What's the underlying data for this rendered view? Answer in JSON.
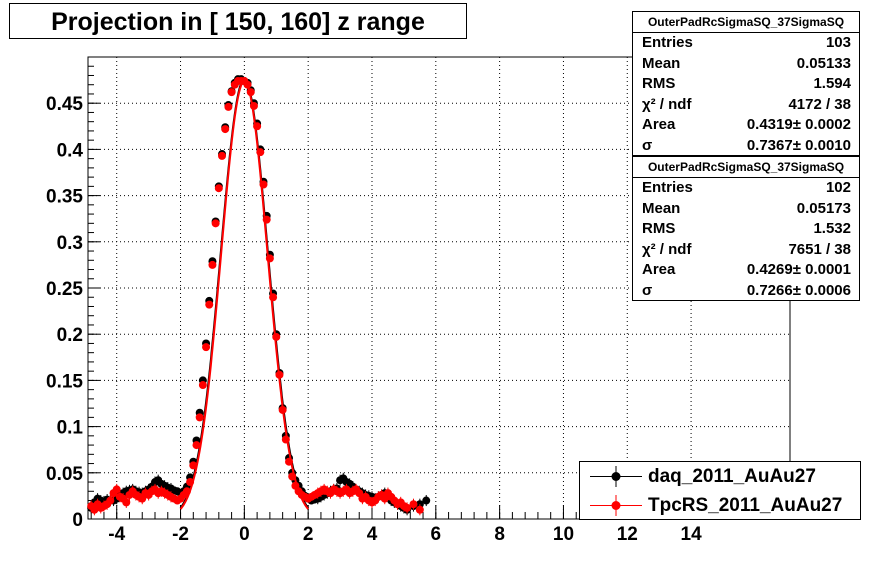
{
  "title": "Projection in [ 150, 160] z range",
  "stats_boxes": [
    {
      "name": "OuterPadRcSigmaSQ_37SigmaSQ",
      "rows": [
        {
          "key": "Entries",
          "value": "103"
        },
        {
          "key": "Mean",
          "value": "0.05133"
        },
        {
          "key": "RMS",
          "value": "1.594"
        },
        {
          "key": "χ² / ndf",
          "value": "4172 / 38"
        },
        {
          "key": "Area",
          "value": "0.4319± 0.0002"
        },
        {
          "key": "σ",
          "value": "0.7367± 0.0010"
        }
      ]
    },
    {
      "name": "OuterPadRcSigmaSQ_37SigmaSQ",
      "rows": [
        {
          "key": "Entries",
          "value": "102"
        },
        {
          "key": "Mean",
          "value": "0.05173"
        },
        {
          "key": "RMS",
          "value": "1.532"
        },
        {
          "key": "χ² / ndf",
          "value": "7651 / 38"
        },
        {
          "key": "Area",
          "value": "0.4269± 0.0001"
        },
        {
          "key": "σ",
          "value": "0.7266± 0.0006"
        }
      ]
    }
  ],
  "legend": [
    {
      "label": "daq_2011_AuAu27",
      "color": "#000000"
    },
    {
      "label": "TpcRS_2011_AuAu27",
      "color": "#ff0000"
    }
  ],
  "chart_data": {
    "type": "scatter",
    "xlim": [
      -4.9,
      17.1
    ],
    "ylim": [
      0,
      0.5
    ],
    "x_ticks": [
      -4,
      -2,
      0,
      2,
      4,
      6,
      8,
      10,
      12,
      14
    ],
    "y_ticks": [
      0,
      0.05,
      0.1,
      0.15,
      0.2,
      0.25,
      0.3,
      0.35,
      0.4,
      0.45
    ],
    "y_tick_labels": [
      "0",
      "0.05",
      "0.1",
      "0.15",
      "0.2",
      "0.25",
      "0.3",
      "0.35",
      "0.4",
      "0.45"
    ],
    "grid": true,
    "series": [
      {
        "name": "daq_2011_AuAu27",
        "color": "#000000",
        "fit_area": 0.4319,
        "fit_sigma": 0.7367,
        "x": [
          -4.8,
          -4.7,
          -4.6,
          -4.5,
          -4.4,
          -4.3,
          -4.2,
          -4.1,
          -4.0,
          -3.9,
          -3.8,
          -3.7,
          -3.6,
          -3.5,
          -3.4,
          -3.3,
          -3.2,
          -3.1,
          -3.0,
          -2.9,
          -2.8,
          -2.7,
          -2.6,
          -2.5,
          -2.4,
          -2.3,
          -2.2,
          -2.1,
          -2.0,
          -1.9,
          -1.8,
          -1.7,
          -1.6,
          -1.5,
          -1.4,
          -1.3,
          -1.2,
          -1.1,
          -1.0,
          -0.9,
          -0.8,
          -0.7,
          -0.6,
          -0.5,
          -0.4,
          -0.3,
          -0.2,
          -0.1,
          0.0,
          0.1,
          0.2,
          0.3,
          0.4,
          0.5,
          0.6,
          0.7,
          0.8,
          0.9,
          1.0,
          1.1,
          1.2,
          1.3,
          1.4,
          1.5,
          1.6,
          1.7,
          1.8,
          1.9,
          2.0,
          2.1,
          2.2,
          2.3,
          2.4,
          2.5,
          2.6,
          2.7,
          2.8,
          2.9,
          3.0,
          3.1,
          3.2,
          3.3,
          3.4,
          3.5,
          3.6,
          3.7,
          3.8,
          3.9,
          4.0,
          4.1,
          4.2,
          4.3,
          4.4,
          4.5,
          4.6,
          4.7,
          4.8,
          4.9,
          5.0,
          5.1,
          5.3,
          5.5,
          5.7
        ],
        "y": [
          0.012,
          0.018,
          0.022,
          0.02,
          0.019,
          0.021,
          0.02,
          0.02,
          0.022,
          0.026,
          0.028,
          0.03,
          0.031,
          0.032,
          0.03,
          0.029,
          0.028,
          0.03,
          0.032,
          0.035,
          0.04,
          0.042,
          0.038,
          0.036,
          0.034,
          0.033,
          0.031,
          0.03,
          0.028,
          0.03,
          0.035,
          0.045,
          0.062,
          0.085,
          0.115,
          0.15,
          0.19,
          0.236,
          0.279,
          0.322,
          0.36,
          0.395,
          0.424,
          0.448,
          0.463,
          0.472,
          0.476,
          0.476,
          0.474,
          0.472,
          0.464,
          0.45,
          0.428,
          0.4,
          0.365,
          0.328,
          0.286,
          0.244,
          0.2,
          0.158,
          0.12,
          0.09,
          0.066,
          0.05,
          0.042,
          0.036,
          0.03,
          0.025,
          0.022,
          0.02,
          0.021,
          0.022,
          0.024,
          0.026,
          0.028,
          0.03,
          0.032,
          0.033,
          0.042,
          0.044,
          0.04,
          0.038,
          0.035,
          0.032,
          0.03,
          0.028,
          0.026,
          0.025,
          0.024,
          0.022,
          0.024,
          0.026,
          0.028,
          0.025,
          0.02,
          0.018,
          0.016,
          0.014,
          0.012,
          0.01,
          0.014,
          0.016,
          0.02
        ]
      },
      {
        "name": "TpcRS_2011_AuAu27",
        "color": "#ff0000",
        "fit_area": 0.4269,
        "fit_sigma": 0.7266,
        "x": [
          -4.8,
          -4.7,
          -4.6,
          -4.5,
          -4.4,
          -4.3,
          -4.2,
          -4.1,
          -4.0,
          -3.9,
          -3.8,
          -3.7,
          -3.6,
          -3.5,
          -3.4,
          -3.3,
          -3.2,
          -3.1,
          -3.0,
          -2.9,
          -2.8,
          -2.7,
          -2.6,
          -2.5,
          -2.4,
          -2.3,
          -2.2,
          -2.1,
          -2.0,
          -1.9,
          -1.8,
          -1.7,
          -1.6,
          -1.5,
          -1.4,
          -1.3,
          -1.2,
          -1.1,
          -1.0,
          -0.9,
          -0.8,
          -0.7,
          -0.6,
          -0.5,
          -0.4,
          -0.3,
          -0.2,
          -0.1,
          0.0,
          0.1,
          0.2,
          0.3,
          0.4,
          0.5,
          0.6,
          0.7,
          0.8,
          0.9,
          1.0,
          1.1,
          1.2,
          1.3,
          1.4,
          1.5,
          1.6,
          1.7,
          1.8,
          1.9,
          2.0,
          2.1,
          2.2,
          2.3,
          2.4,
          2.5,
          2.6,
          2.7,
          2.8,
          2.9,
          3.0,
          3.1,
          3.2,
          3.3,
          3.4,
          3.5,
          3.6,
          3.7,
          3.8,
          3.9,
          4.0,
          4.1,
          4.2,
          4.3,
          4.4,
          4.5,
          4.6,
          4.7,
          4.8,
          4.9,
          5.0,
          5.1,
          5.3,
          5.5
        ],
        "y": [
          0.014,
          0.01,
          0.016,
          0.012,
          0.014,
          0.016,
          0.02,
          0.028,
          0.032,
          0.024,
          0.022,
          0.018,
          0.026,
          0.03,
          0.026,
          0.024,
          0.022,
          0.028,
          0.026,
          0.03,
          0.032,
          0.028,
          0.03,
          0.028,
          0.026,
          0.024,
          0.022,
          0.02,
          0.022,
          0.026,
          0.03,
          0.04,
          0.058,
          0.08,
          0.11,
          0.145,
          0.186,
          0.232,
          0.275,
          0.32,
          0.358,
          0.393,
          0.422,
          0.446,
          0.462,
          0.47,
          0.474,
          0.474,
          0.474,
          0.47,
          0.462,
          0.447,
          0.425,
          0.397,
          0.362,
          0.324,
          0.282,
          0.24,
          0.197,
          0.156,
          0.118,
          0.086,
          0.062,
          0.046,
          0.036,
          0.03,
          0.026,
          0.024,
          0.022,
          0.024,
          0.026,
          0.028,
          0.03,
          0.032,
          0.03,
          0.028,
          0.032,
          0.03,
          0.028,
          0.03,
          0.032,
          0.028,
          0.03,
          0.032,
          0.028,
          0.022,
          0.024,
          0.02,
          0.018,
          0.02,
          0.024,
          0.026,
          0.022,
          0.028,
          0.024,
          0.02,
          0.016,
          0.018,
          0.014,
          0.012,
          0.016,
          0.01
        ]
      }
    ]
  }
}
